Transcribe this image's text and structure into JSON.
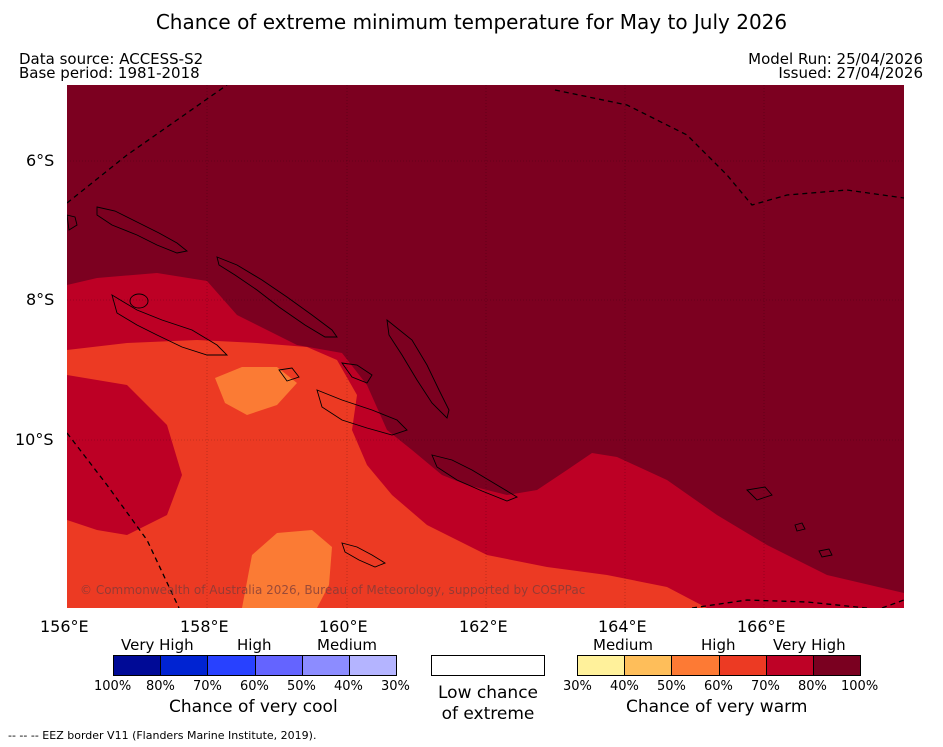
{
  "title": "Chance of extreme minimum temperature for May to July 2026",
  "header": {
    "data_source": "Data source: ACCESS-S2",
    "base_period": "Base period: 1981-2018",
    "model_run": "Model Run: 25/04/2026",
    "issued": "Issued: 27/04/2026"
  },
  "map": {
    "lat_labels": [
      "6°S",
      "8°S",
      "10°S"
    ],
    "lon_labels": [
      "156°E",
      "158°E",
      "160°E",
      "162°E",
      "164°E",
      "166°E"
    ],
    "copyright": "© Commonwealth of Australia 2026, Bureau of Meteorology, supported by COSPPac",
    "colors": {
      "very_high_warm": "#7c0020",
      "high_warm": "#bd0025",
      "medium_high_warm": "#ec3a23",
      "medium_warm": "#fb7b34"
    }
  },
  "legend": {
    "cool": {
      "categories": [
        "Very High",
        "High",
        "Medium"
      ],
      "colors": [
        "#000a96",
        "#0023d2",
        "#2841ff",
        "#6464ff",
        "#8c8cff",
        "#b4b4ff"
      ],
      "ticks": [
        "100%",
        "80%",
        "70%",
        "60%",
        "50%",
        "40%",
        "30%"
      ],
      "caption": "Chance of very cool"
    },
    "neutral": {
      "caption_line1": "Low chance",
      "caption_line2": "of extreme",
      "color": "#ffffff"
    },
    "warm": {
      "categories": [
        "Medium",
        "High",
        "Very High"
      ],
      "colors": [
        "#fff19b",
        "#febe5a",
        "#fd7a34",
        "#ec3a23",
        "#be0226",
        "#7a0020"
      ],
      "ticks": [
        "30%",
        "40%",
        "50%",
        "60%",
        "70%",
        "80%",
        "100%"
      ],
      "caption": "Chance of very warm"
    }
  },
  "footer": {
    "eez_note": "--  --  -- EEZ border V11 (Flanders Marine Institute, 2019)."
  }
}
